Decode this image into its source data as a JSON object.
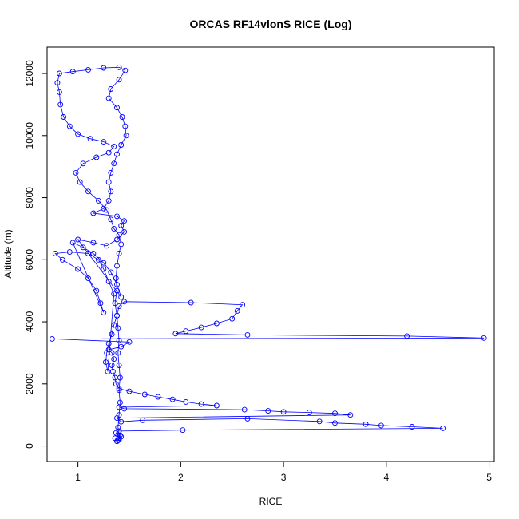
{
  "chart_data": {
    "type": "scatter",
    "title": "ORCAS RF14vlonS RICE (Log)",
    "xlabel": "RICE",
    "ylabel": "Altitude (m)",
    "xlim": [
      0.7,
      5.05
    ],
    "ylim": [
      -500,
      12850
    ],
    "x_ticks": [
      1,
      2,
      3,
      4,
      5
    ],
    "y_ticks": [
      0,
      2000,
      4000,
      6000,
      8000,
      10000,
      12000
    ],
    "grid": false,
    "legend": "none",
    "point_color": "#0000ff",
    "series": [
      {
        "style": "points-and-lines",
        "points": [
          [
            1.38,
            150
          ],
          [
            1.4,
            200
          ],
          [
            1.36,
            250
          ],
          [
            1.42,
            300
          ],
          [
            1.39,
            180
          ],
          [
            1.41,
            350
          ],
          [
            1.37,
            420
          ],
          [
            1.4,
            480
          ],
          [
            2.02,
            510
          ],
          [
            4.55,
            570
          ],
          [
            4.25,
            620
          ],
          [
            3.95,
            660
          ],
          [
            3.8,
            700
          ],
          [
            3.5,
            740
          ],
          [
            3.35,
            790
          ],
          [
            2.65,
            880
          ],
          [
            1.63,
            830
          ],
          [
            1.42,
            780
          ],
          [
            1.38,
            900
          ],
          [
            3.65,
            1000
          ],
          [
            3.5,
            1050
          ],
          [
            3.25,
            1080
          ],
          [
            3.0,
            1100
          ],
          [
            2.85,
            1130
          ],
          [
            2.62,
            1170
          ],
          [
            1.45,
            1200
          ],
          [
            1.4,
            1250
          ],
          [
            2.35,
            1300
          ],
          [
            2.2,
            1350
          ],
          [
            2.05,
            1420
          ],
          [
            1.92,
            1500
          ],
          [
            1.78,
            1580
          ],
          [
            1.65,
            1660
          ],
          [
            1.5,
            1760
          ],
          [
            1.4,
            1850
          ],
          [
            1.37,
            2000
          ],
          [
            1.36,
            2200
          ],
          [
            1.34,
            2400
          ],
          [
            1.33,
            2600
          ],
          [
            1.35,
            2800
          ],
          [
            1.33,
            3000
          ],
          [
            1.3,
            3100
          ],
          [
            1.42,
            3200
          ],
          [
            1.5,
            3350
          ],
          [
            0.75,
            3450
          ],
          [
            4.95,
            3480
          ],
          [
            4.2,
            3540
          ],
          [
            2.65,
            3580
          ],
          [
            1.95,
            3620
          ],
          [
            2.05,
            3700
          ],
          [
            2.2,
            3820
          ],
          [
            2.35,
            3950
          ],
          [
            2.5,
            4100
          ],
          [
            2.55,
            4350
          ],
          [
            2.6,
            4550
          ],
          [
            2.1,
            4620
          ],
          [
            1.45,
            4650
          ],
          [
            1.4,
            4500
          ],
          [
            1.38,
            4200
          ],
          [
            1.35,
            3900
          ],
          [
            1.33,
            3600
          ],
          [
            1.3,
            3300
          ],
          [
            1.28,
            3000
          ],
          [
            1.27,
            2700
          ],
          [
            1.29,
            2400
          ],
          [
            1.35,
            4900
          ],
          [
            1.3,
            5300
          ],
          [
            1.25,
            5700
          ],
          [
            1.2,
            6000
          ],
          [
            1.1,
            6200
          ],
          [
            0.92,
            6250
          ],
          [
            0.78,
            6200
          ],
          [
            0.85,
            6000
          ],
          [
            1.0,
            5700
          ],
          [
            1.1,
            5400
          ],
          [
            1.18,
            5000
          ],
          [
            1.22,
            4600
          ],
          [
            1.25,
            4300
          ],
          [
            0.95,
            6550
          ],
          [
            1.05,
            6400
          ],
          [
            1.15,
            6200
          ],
          [
            1.25,
            5900
          ],
          [
            1.32,
            5600
          ],
          [
            1.38,
            5200
          ],
          [
            1.42,
            4800
          ],
          [
            1.0,
            6650
          ],
          [
            1.15,
            6550
          ],
          [
            1.28,
            6450
          ],
          [
            1.38,
            6650
          ],
          [
            1.45,
            6900
          ],
          [
            1.42,
            7100
          ],
          [
            1.45,
            7250
          ],
          [
            1.38,
            7400
          ],
          [
            1.15,
            7500
          ],
          [
            1.25,
            7650
          ],
          [
            1.3,
            7900
          ],
          [
            1.32,
            8200
          ],
          [
            1.3,
            8500
          ],
          [
            1.32,
            8800
          ],
          [
            1.35,
            9100
          ],
          [
            1.38,
            9400
          ],
          [
            1.42,
            9700
          ],
          [
            1.47,
            10000
          ],
          [
            1.46,
            10300
          ],
          [
            1.43,
            10600
          ],
          [
            1.38,
            10900
          ],
          [
            1.3,
            11200
          ],
          [
            1.32,
            11500
          ],
          [
            1.4,
            11800
          ],
          [
            1.46,
            12100
          ],
          [
            1.4,
            12200
          ],
          [
            1.25,
            12180
          ],
          [
            1.1,
            12120
          ],
          [
            0.95,
            12060
          ],
          [
            0.82,
            12000
          ],
          [
            0.8,
            11700
          ],
          [
            0.82,
            11400
          ],
          [
            0.83,
            11000
          ],
          [
            0.86,
            10600
          ],
          [
            0.92,
            10300
          ],
          [
            1.0,
            10050
          ],
          [
            1.12,
            9900
          ],
          [
            1.25,
            9800
          ],
          [
            1.35,
            9650
          ],
          [
            1.3,
            9450
          ],
          [
            1.18,
            9300
          ],
          [
            1.05,
            9100
          ],
          [
            0.98,
            8800
          ],
          [
            1.02,
            8500
          ],
          [
            1.1,
            8200
          ],
          [
            1.2,
            7900
          ],
          [
            1.28,
            7600
          ],
          [
            1.32,
            7300
          ],
          [
            1.35,
            7000
          ],
          [
            1.4,
            6800
          ],
          [
            1.42,
            6500
          ],
          [
            1.4,
            6200
          ],
          [
            1.38,
            5800
          ],
          [
            1.37,
            5400
          ],
          [
            1.38,
            5000
          ],
          [
            1.36,
            4600
          ],
          [
            1.38,
            4200
          ],
          [
            1.39,
            3800
          ],
          [
            1.4,
            3400
          ],
          [
            1.39,
            3000
          ],
          [
            1.4,
            2600
          ],
          [
            1.41,
            2200
          ],
          [
            1.4,
            1800
          ],
          [
            1.41,
            1400
          ],
          [
            1.4,
            1000
          ],
          [
            1.39,
            600
          ],
          [
            1.4,
            250
          ]
        ]
      }
    ]
  }
}
